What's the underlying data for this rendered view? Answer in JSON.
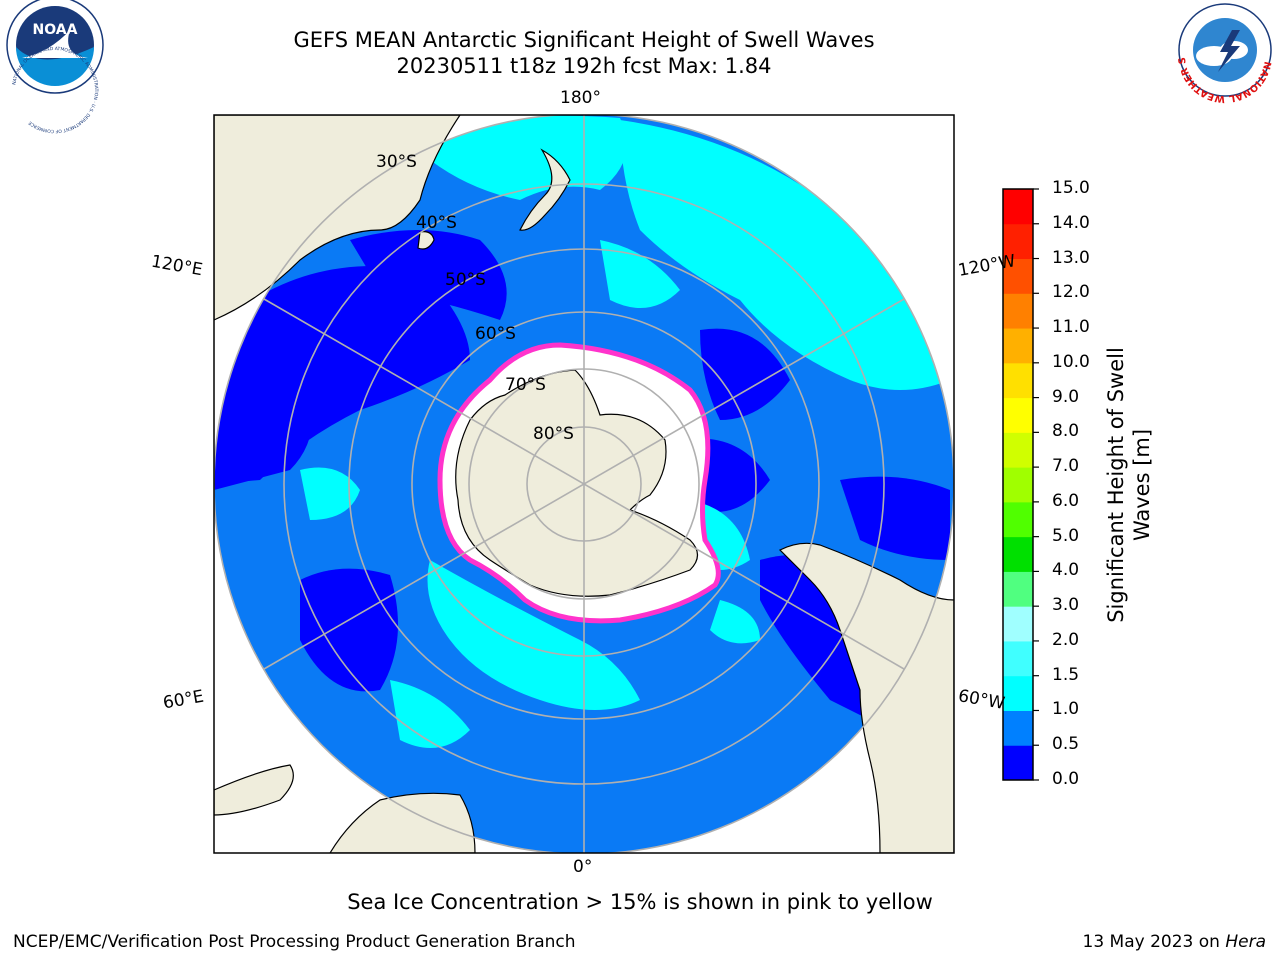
{
  "title": {
    "line1": "GEFS MEAN Antarctic Significant Height of Swell Waves",
    "line2": "20230511 t18z 192h fcst   Max: 1.84"
  },
  "logos": {
    "left": "NOAA",
    "left_ring_text": "NATIONAL OCEANIC AND ATMOSPHERIC ADMINISTRATION · U.S. DEPARTMENT OF COMMERCE",
    "right_ring_text": "NATIONAL WEATHER SERVICE"
  },
  "map": {
    "lon_labels": {
      "top": "180°",
      "bottom": "0°",
      "left_upper": "120°E",
      "left_lower": "60°E",
      "right_upper": "120°W",
      "right_lower": "60°W"
    },
    "lat_labels": [
      "30°S",
      "40°S",
      "50°S",
      "60°S",
      "70°S",
      "80°S"
    ]
  },
  "colorbar": {
    "title_line1": "Significant Height of Swell",
    "title_line2": "Waves [m]",
    "ticks": [
      "15.0",
      "14.0",
      "13.0",
      "12.0",
      "11.0",
      "10.0",
      "9.0",
      "8.0",
      "7.0",
      "6.0",
      "5.0",
      "4.0",
      "3.0",
      "2.0",
      "1.5",
      "1.0",
      "0.5",
      "0.0"
    ],
    "colors": [
      "#0000ff",
      "#0080ff",
      "#00ffff",
      "#40ffff",
      "#a0ffff",
      "#50ff80",
      "#00e000",
      "#50ff00",
      "#a0ff00",
      "#d0ff00",
      "#ffff00",
      "#ffe000",
      "#ffb000",
      "#ff8000",
      "#ff5000",
      "#ff2000",
      "#ff0000"
    ]
  },
  "note": "Sea Ice Concentration > 15% is shown in pink to yellow",
  "footer": {
    "left": "NCEP/EMC/Verification Post Processing Product Generation Branch",
    "right_prefix": "13 May 2023 on ",
    "right_italic": "Hera"
  }
}
